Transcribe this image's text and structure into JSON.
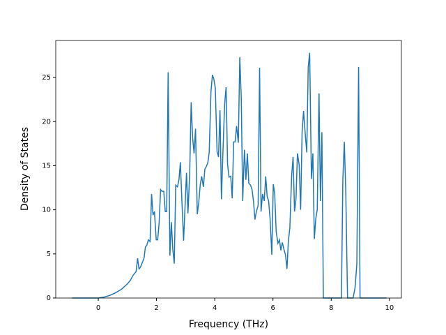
{
  "chart_data": {
    "type": "line",
    "xlabel": "Frequency (THz)",
    "ylabel": "Density of States",
    "x": [
      -0.9,
      0,
      0.2,
      0.4,
      0.6,
      0.8,
      1.0,
      1.1,
      1.2,
      1.3,
      1.35,
      1.4,
      1.45,
      1.57,
      1.62,
      1.67,
      1.72,
      1.78,
      1.83,
      1.88,
      1.93,
      1.99,
      2.04,
      2.09,
      2.14,
      2.19,
      2.25,
      2.3,
      2.35,
      2.4,
      2.46,
      2.51,
      2.56,
      2.61,
      2.66,
      2.72,
      2.77,
      2.82,
      2.87,
      2.93,
      3.03,
      3.08,
      3.14,
      3.19,
      3.24,
      3.29,
      3.34,
      3.4,
      3.45,
      3.5,
      3.55,
      3.61,
      3.66,
      3.71,
      3.76,
      3.81,
      3.87,
      3.92,
      3.97,
      4.02,
      4.08,
      4.13,
      4.18,
      4.23,
      4.28,
      4.34,
      4.39,
      4.44,
      4.49,
      4.55,
      4.6,
      4.65,
      4.7,
      4.75,
      4.81,
      4.86,
      4.91,
      4.96,
      5.02,
      5.07,
      5.12,
      5.17,
      5.23,
      5.28,
      5.33,
      5.38,
      5.43,
      5.49,
      5.54,
      5.59,
      5.64,
      5.7,
      5.75,
      5.8,
      5.85,
      5.9,
      5.96,
      6.01,
      6.06,
      6.11,
      6.17,
      6.22,
      6.27,
      6.32,
      6.37,
      6.43,
      6.48,
      6.53,
      6.58,
      6.64,
      6.69,
      6.74,
      6.79,
      6.84,
      6.9,
      6.95,
      7.0,
      7.05,
      7.11,
      7.16,
      7.21,
      7.26,
      7.32,
      7.37,
      7.42,
      7.47,
      7.52,
      7.58,
      7.63,
      7.68,
      7.73,
      8.35,
      8.4,
      8.45,
      8.5,
      8.56,
      8.75,
      8.82,
      8.88,
      8.94,
      8.99,
      9.9
    ],
    "series": [
      {
        "color": "#1f77b4",
        "values": [
          0,
          0,
          0.1,
          0.3,
          0.6,
          1.0,
          1.6,
          2.0,
          2.6,
          3.0,
          4.5,
          3.3,
          3.5,
          4.5,
          5.8,
          6.0,
          6.6,
          6.4,
          11.8,
          9.4,
          9.8,
          6.6,
          6.6,
          8.5,
          12.3,
          12.1,
          12.1,
          9.8,
          9.8,
          25.6,
          4.8,
          8.6,
          5.5,
          3.9,
          12.8,
          12.6,
          13.4,
          15.4,
          11.2,
          6.5,
          14.2,
          9.6,
          14.1,
          22.2,
          18.2,
          16.4,
          19.2,
          9.5,
          10.8,
          12.8,
          13.8,
          12.6,
          14.6,
          14.9,
          15.3,
          16.5,
          23.4,
          25.3,
          24.8,
          23.8,
          16.6,
          16.0,
          21.3,
          11.2,
          16.4,
          22.0,
          23.9,
          15.2,
          13.7,
          13.8,
          11.3,
          17.7,
          17.7,
          19.5,
          17.6,
          27.3,
          22.8,
          11.0,
          16.8,
          13.4,
          16.4,
          13.0,
          12.8,
          12.3,
          11.0,
          8.9,
          9.8,
          10.5,
          26.1,
          9.8,
          11.8,
          11.0,
          13.8,
          11.5,
          11.0,
          9.0,
          4.9,
          12.9,
          11.8,
          7.5,
          6.2,
          6.6,
          5.4,
          6.3,
          5.6,
          4.9,
          3.3,
          6.5,
          8.0,
          13.8,
          16.0,
          9.8,
          11.2,
          16.4,
          15.1,
          10.0,
          18.8,
          21.2,
          18.5,
          16.5,
          26.2,
          27.8,
          13.5,
          16.4,
          6.7,
          9.0,
          10.0,
          23.2,
          11.0,
          18.8,
          0,
          0,
          13.6,
          17.7,
          12.0,
          0,
          0,
          1.2,
          3.9,
          26.2,
          0,
          0
        ]
      }
    ],
    "xlim": [
      -1.46,
      10.41
    ],
    "ylim": [
      0,
      29.2
    ],
    "xticks": [
      0,
      2,
      4,
      6,
      8,
      10
    ],
    "yticks": [
      0,
      5,
      10,
      15,
      20,
      25
    ]
  }
}
